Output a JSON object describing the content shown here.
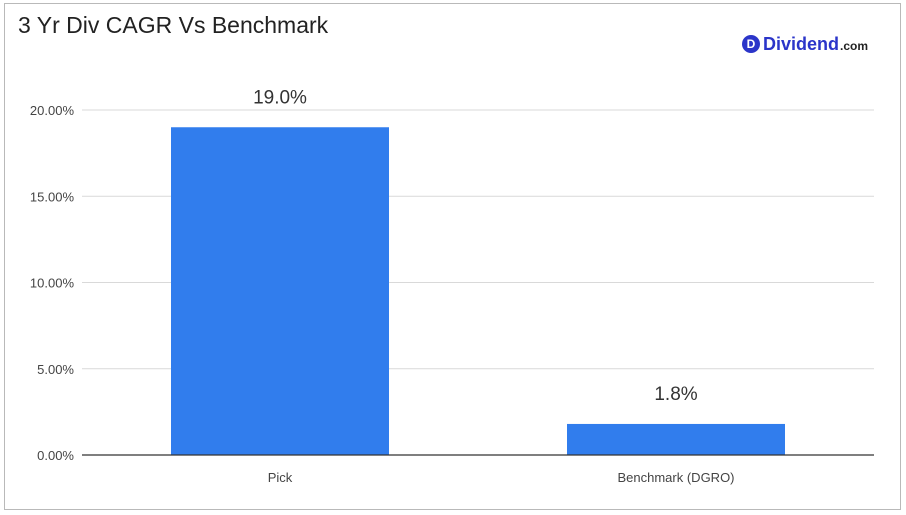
{
  "brand": {
    "logo_letter": "D",
    "logo_word": "Dividend",
    "logo_domain": ".com",
    "color": "#2b35c9"
  },
  "chart_data": {
    "type": "bar",
    "title": "3 Yr Div CAGR Vs Benchmark",
    "categories": [
      "Pick",
      "Benchmark (DGRO)"
    ],
    "values": [
      19.0,
      1.8
    ],
    "data_labels": [
      "19.0%",
      "1.8%"
    ],
    "xlabel": "",
    "ylabel": "",
    "ylim": [
      0,
      20
    ],
    "yticks": [
      0,
      5,
      10,
      15,
      20
    ],
    "ytick_labels": [
      "0.00%",
      "5.00%",
      "10.00%",
      "15.00%",
      "20.00%"
    ],
    "grid": true,
    "bar_color": "#317ded"
  }
}
